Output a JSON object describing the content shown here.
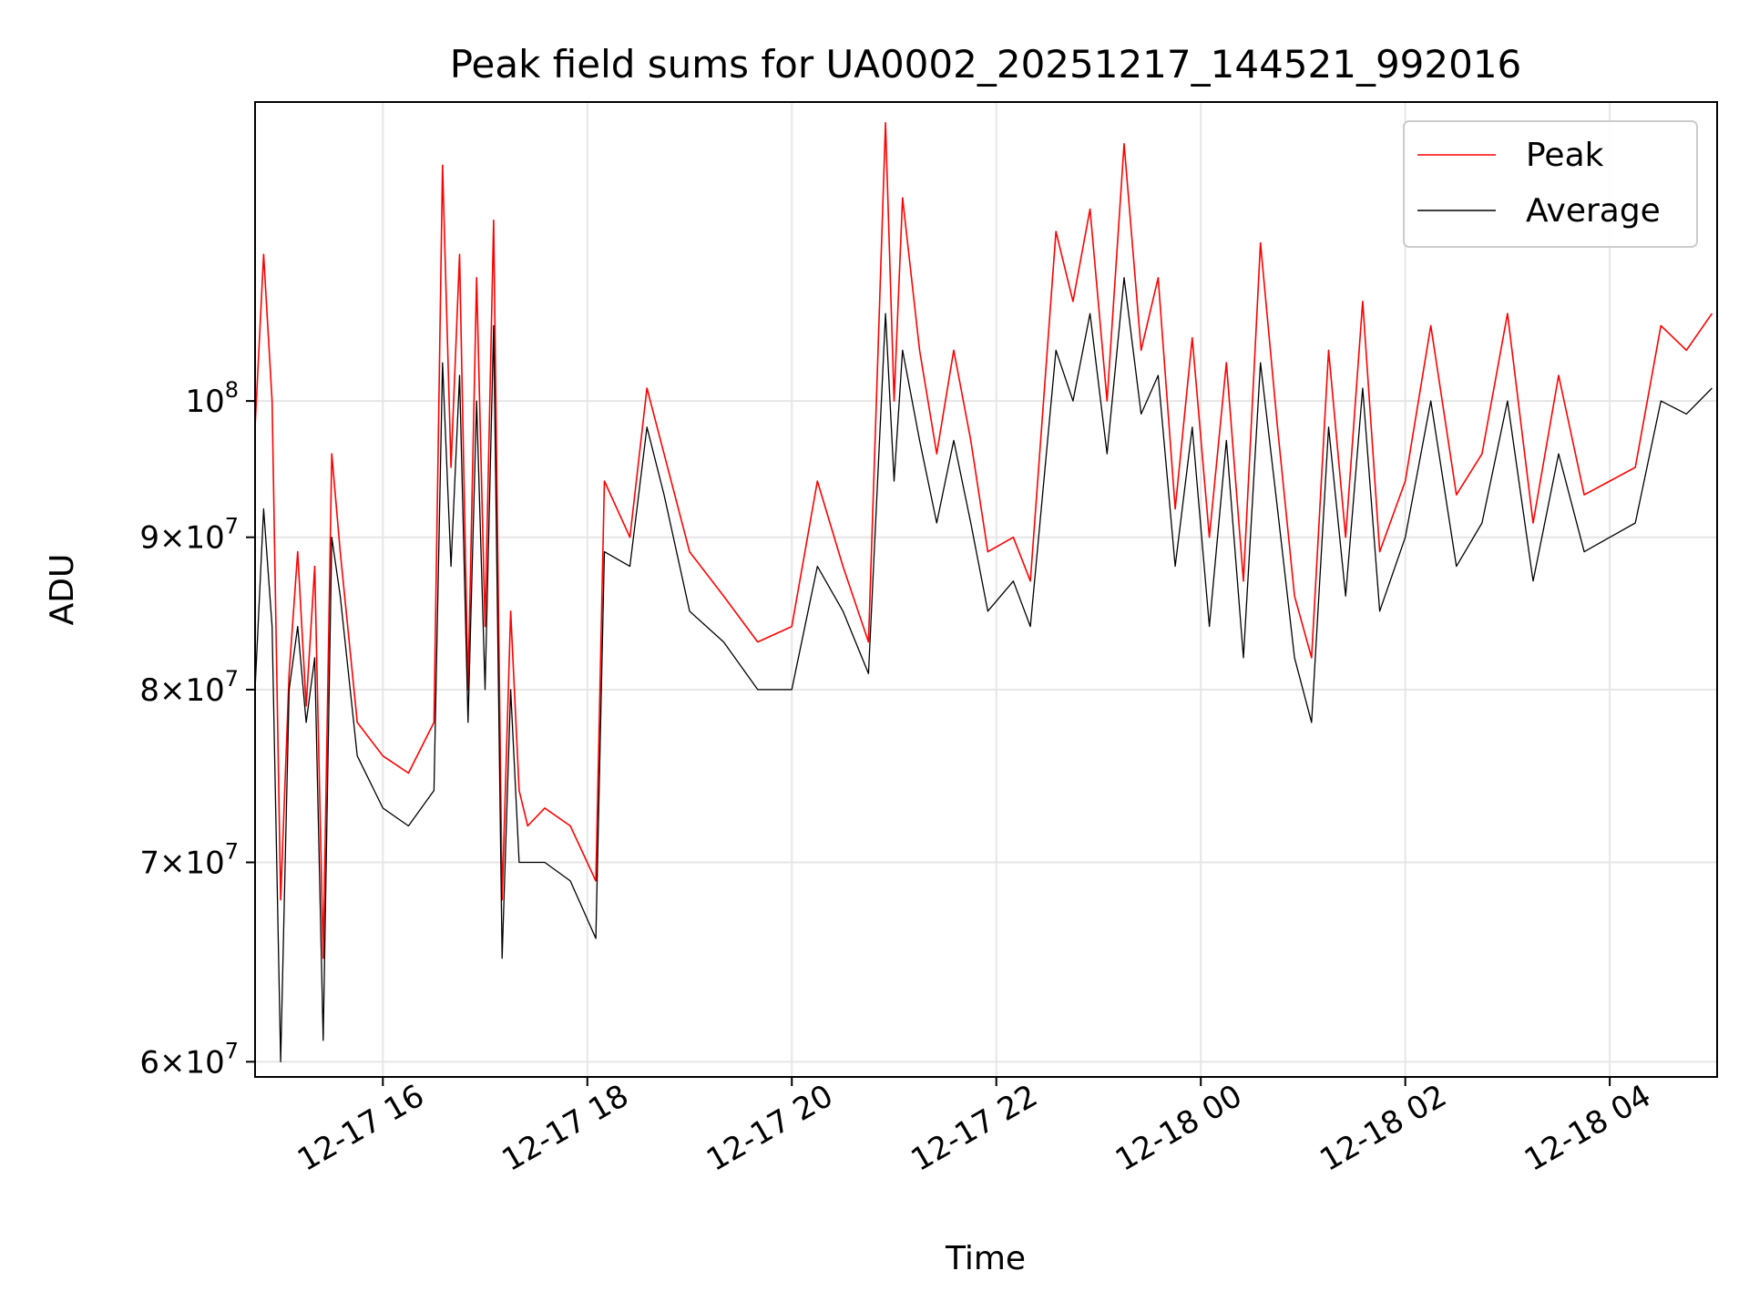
{
  "chart_data": {
    "type": "line",
    "title": "Peak field sums for UA0002_20251217_144521_992016",
    "xlabel": "Time",
    "ylabel": "ADU",
    "y_scale": "log",
    "ylim": [
      59300000,
      126000000
    ],
    "xlim": [
      "2025-12-17 14:45",
      "2025-12-18 05:03"
    ],
    "grid": true,
    "legend_position": "top-right",
    "x_ticks": [
      {
        "value": "2025-12-17 16:00",
        "label": "12-17 16"
      },
      {
        "value": "2025-12-17 18:00",
        "label": "12-17 18"
      },
      {
        "value": "2025-12-17 20:00",
        "label": "12-17 20"
      },
      {
        "value": "2025-12-17 22:00",
        "label": "12-17 22"
      },
      {
        "value": "2025-12-18 00:00",
        "label": "12-18 00"
      },
      {
        "value": "2025-12-18 02:00",
        "label": "12-18 02"
      },
      {
        "value": "2025-12-18 04:00",
        "label": "12-18 04"
      }
    ],
    "y_ticks": [
      {
        "value": 60000000,
        "base": "6",
        "exp": "7"
      },
      {
        "value": 70000000,
        "base": "7",
        "exp": "7"
      },
      {
        "value": 80000000,
        "base": "8",
        "exp": "7"
      },
      {
        "value": 90000000,
        "base": "9",
        "exp": "7"
      },
      {
        "value": 100000000,
        "base": "",
        "exp": "8"
      }
    ],
    "series": [
      {
        "name": "Peak",
        "color": "#ff0000",
        "x": [
          "2025-12-17 14:45",
          "2025-12-17 14:50",
          "2025-12-17 14:55",
          "2025-12-17 15:00",
          "2025-12-17 15:05",
          "2025-12-17 15:10",
          "2025-12-17 15:15",
          "2025-12-17 15:20",
          "2025-12-17 15:25",
          "2025-12-17 15:30",
          "2025-12-17 15:35",
          "2025-12-17 15:45",
          "2025-12-17 16:00",
          "2025-12-17 16:15",
          "2025-12-17 16:30",
          "2025-12-17 16:35",
          "2025-12-17 16:40",
          "2025-12-17 16:45",
          "2025-12-17 16:50",
          "2025-12-17 16:55",
          "2025-12-17 17:00",
          "2025-12-17 17:05",
          "2025-12-17 17:10",
          "2025-12-17 17:15",
          "2025-12-17 17:20",
          "2025-12-17 17:25",
          "2025-12-17 17:35",
          "2025-12-17 17:50",
          "2025-12-17 18:05",
          "2025-12-17 18:10",
          "2025-12-17 18:25",
          "2025-12-17 18:35",
          "2025-12-17 18:45",
          "2025-12-17 19:00",
          "2025-12-17 19:20",
          "2025-12-17 19:40",
          "2025-12-17 20:00",
          "2025-12-17 20:15",
          "2025-12-17 20:30",
          "2025-12-17 20:45",
          "2025-12-17 20:55",
          "2025-12-17 21:00",
          "2025-12-17 21:05",
          "2025-12-17 21:15",
          "2025-12-17 21:25",
          "2025-12-17 21:35",
          "2025-12-17 21:45",
          "2025-12-17 21:55",
          "2025-12-17 22:10",
          "2025-12-17 22:20",
          "2025-12-17 22:35",
          "2025-12-17 22:45",
          "2025-12-17 22:55",
          "2025-12-17 23:05",
          "2025-12-17 23:15",
          "2025-12-17 23:25",
          "2025-12-17 23:35",
          "2025-12-17 23:45",
          "2025-12-17 23:55",
          "2025-12-18 00:05",
          "2025-12-18 00:15",
          "2025-12-18 00:25",
          "2025-12-18 00:35",
          "2025-12-18 00:45",
          "2025-12-18 00:55",
          "2025-12-18 01:05",
          "2025-12-18 01:15",
          "2025-12-18 01:25",
          "2025-12-18 01:35",
          "2025-12-18 01:45",
          "2025-12-18 02:00",
          "2025-12-18 02:15",
          "2025-12-18 02:30",
          "2025-12-18 02:45",
          "2025-12-18 03:00",
          "2025-12-18 03:15",
          "2025-12-18 03:30",
          "2025-12-18 03:45",
          "2025-12-18 04:00",
          "2025-12-18 04:15",
          "2025-12-18 04:30",
          "2025-12-18 04:45",
          "2025-12-18 05:00"
        ],
        "values": [
          98000000,
          112000000,
          100000000,
          68000000,
          81000000,
          89000000,
          79000000,
          88000000,
          65000000,
          96000000,
          89000000,
          78000000,
          76000000,
          75000000,
          78000000,
          120000000,
          95000000,
          112000000,
          80000000,
          110000000,
          84000000,
          115000000,
          68000000,
          85000000,
          74000000,
          72000000,
          73000000,
          72000000,
          69000000,
          94000000,
          90000000,
          101000000,
          96000000,
          89000000,
          86000000,
          83000000,
          84000000,
          94000000,
          88000000,
          83000000,
          124000000,
          100000000,
          117000000,
          104000000,
          96000000,
          104000000,
          97000000,
          89000000,
          90000000,
          87000000,
          114000000,
          108000000,
          116000000,
          100000000,
          122000000,
          104000000,
          110000000,
          92000000,
          105000000,
          90000000,
          103000000,
          87000000,
          113000000,
          98000000,
          86000000,
          82000000,
          104000000,
          90000000,
          108000000,
          89000000,
          94000000,
          106000000,
          93000000,
          96000000,
          107000000,
          91000000,
          102000000,
          93000000,
          94000000,
          95000000,
          106000000,
          104000000,
          107000000
        ]
      },
      {
        "name": "Average",
        "color": "#000000",
        "x": [
          "2025-12-17 14:45",
          "2025-12-17 14:50",
          "2025-12-17 14:55",
          "2025-12-17 15:00",
          "2025-12-17 15:05",
          "2025-12-17 15:10",
          "2025-12-17 15:15",
          "2025-12-17 15:20",
          "2025-12-17 15:25",
          "2025-12-17 15:30",
          "2025-12-17 15:35",
          "2025-12-17 15:45",
          "2025-12-17 16:00",
          "2025-12-17 16:15",
          "2025-12-17 16:30",
          "2025-12-17 16:35",
          "2025-12-17 16:40",
          "2025-12-17 16:45",
          "2025-12-17 16:50",
          "2025-12-17 16:55",
          "2025-12-17 17:00",
          "2025-12-17 17:05",
          "2025-12-17 17:10",
          "2025-12-17 17:15",
          "2025-12-17 17:20",
          "2025-12-17 17:25",
          "2025-12-17 17:35",
          "2025-12-17 17:50",
          "2025-12-17 18:05",
          "2025-12-17 18:10",
          "2025-12-17 18:25",
          "2025-12-17 18:35",
          "2025-12-17 18:45",
          "2025-12-17 19:00",
          "2025-12-17 19:20",
          "2025-12-17 19:40",
          "2025-12-17 20:00",
          "2025-12-17 20:15",
          "2025-12-17 20:30",
          "2025-12-17 20:45",
          "2025-12-17 20:55",
          "2025-12-17 21:00",
          "2025-12-17 21:05",
          "2025-12-17 21:15",
          "2025-12-17 21:25",
          "2025-12-17 21:35",
          "2025-12-17 21:45",
          "2025-12-17 21:55",
          "2025-12-17 22:10",
          "2025-12-17 22:20",
          "2025-12-17 22:35",
          "2025-12-17 22:45",
          "2025-12-17 22:55",
          "2025-12-17 23:05",
          "2025-12-17 23:15",
          "2025-12-17 23:25",
          "2025-12-17 23:35",
          "2025-12-17 23:45",
          "2025-12-17 23:55",
          "2025-12-18 00:05",
          "2025-12-18 00:15",
          "2025-12-18 00:25",
          "2025-12-18 00:35",
          "2025-12-18 00:45",
          "2025-12-18 00:55",
          "2025-12-18 01:05",
          "2025-12-18 01:15",
          "2025-12-18 01:25",
          "2025-12-18 01:35",
          "2025-12-18 01:45",
          "2025-12-18 02:00",
          "2025-12-18 02:15",
          "2025-12-18 02:30",
          "2025-12-18 02:45",
          "2025-12-18 03:00",
          "2025-12-18 03:15",
          "2025-12-18 03:30",
          "2025-12-18 03:45",
          "2025-12-18 04:00",
          "2025-12-18 04:15",
          "2025-12-18 04:30",
          "2025-12-18 04:45",
          "2025-12-18 05:00"
        ],
        "values": [
          80000000,
          92000000,
          84000000,
          60000000,
          80000000,
          84000000,
          78000000,
          82000000,
          61000000,
          90000000,
          86000000,
          76000000,
          73000000,
          72000000,
          74000000,
          103000000,
          88000000,
          102000000,
          78000000,
          100000000,
          80000000,
          106000000,
          65000000,
          80000000,
          70000000,
          70000000,
          70000000,
          69000000,
          66000000,
          89000000,
          88000000,
          98000000,
          93000000,
          85000000,
          83000000,
          80000000,
          80000000,
          88000000,
          85000000,
          81000000,
          107000000,
          94000000,
          104000000,
          97000000,
          91000000,
          97000000,
          91000000,
          85000000,
          87000000,
          84000000,
          104000000,
          100000000,
          107000000,
          96000000,
          110000000,
          99000000,
          102000000,
          88000000,
          98000000,
          84000000,
          97000000,
          82000000,
          103000000,
          92000000,
          82000000,
          78000000,
          98000000,
          86000000,
          101000000,
          85000000,
          90000000,
          100000000,
          88000000,
          91000000,
          100000000,
          87000000,
          96000000,
          89000000,
          90000000,
          91000000,
          100000000,
          99000000,
          101000000
        ]
      }
    ]
  },
  "legend": {
    "peak_label": "Peak",
    "average_label": "Average"
  }
}
